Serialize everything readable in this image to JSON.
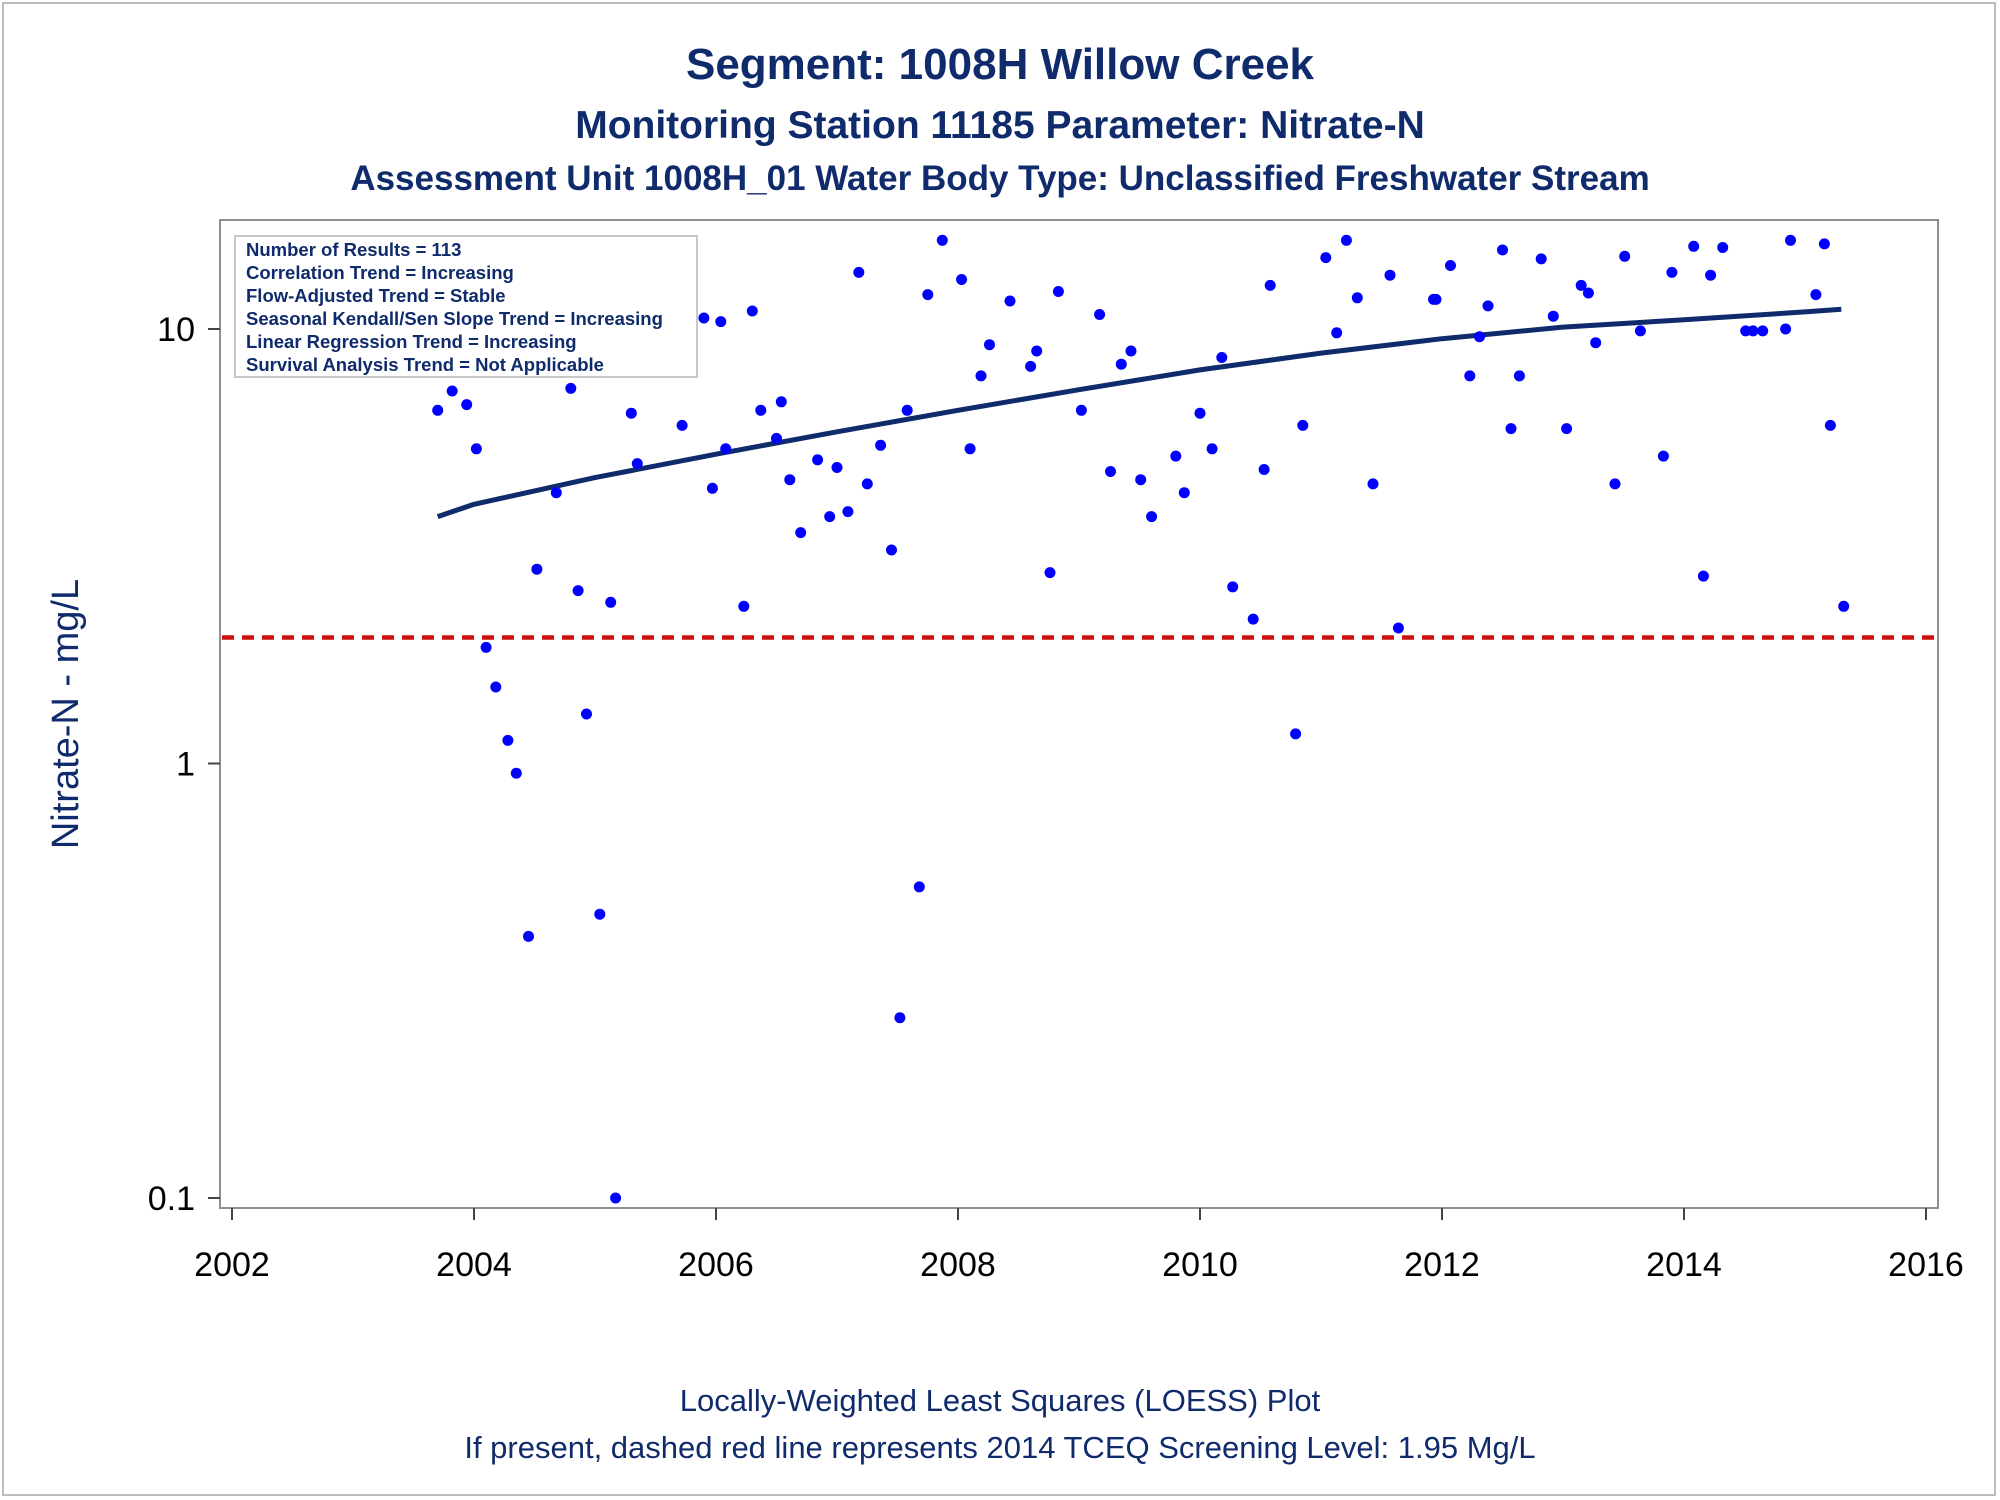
{
  "chart_data": {
    "type": "scatter",
    "title": "Segment: 1008H  Willow Creek",
    "subtitle": "Monitoring Station 11185 Parameter: Nitrate-N",
    "subtitle2": "Assessment Unit 1008H_01   Water Body Type: Unclassified Freshwater Stream",
    "ylabel": "Nitrate-N - mg/L",
    "xlim": [
      2002,
      2016
    ],
    "ylim": [
      0.1,
      17
    ],
    "yscale": "log",
    "x_ticks": [
      "2002",
      "2004",
      "2006",
      "2008",
      "2010",
      "2012",
      "2014",
      "2016"
    ],
    "y_ticks": [
      "0.1",
      "1",
      "10"
    ],
    "legend": [
      "Number of Results = 113",
      "Correlation Trend = Increasing",
      "Flow-Adjusted Trend = Stable",
      "Seasonal Kendall/Sen Slope Trend = Increasing",
      "Linear Regression Trend = Increasing",
      "Survival Analysis Trend = Not Applicable"
    ],
    "legend_placement": "top-left",
    "footnotes": [
      "Locally-Weighted Least Squares (LOESS) Plot",
      "If present, dashed red line represents 2014 TCEQ Screening Level: 1.95 Mg/L"
    ],
    "screening_level": 1.95,
    "series": [
      {
        "style": "points",
        "color": "#0000ff",
        "x": [
          2003.7,
          2003.82,
          2003.88,
          2003.94,
          2004.02,
          2004.1,
          2004.18,
          2004.28,
          2004.35,
          2004.45,
          2004.52,
          2004.68,
          2004.8,
          2004.86,
          2004.93,
          2005.04,
          2005.13,
          2005.17,
          2005.3,
          2005.35,
          2005.72,
          2005.78,
          2005.9,
          2005.97,
          2006.04,
          2006.08,
          2006.23,
          2006.3,
          2006.37,
          2006.5,
          2006.54,
          2006.61,
          2006.7,
          2006.84,
          2006.94,
          2007.0,
          2007.09,
          2007.18,
          2007.25,
          2007.36,
          2007.45,
          2007.52,
          2007.58,
          2007.68,
          2007.75,
          2007.87,
          2008.03,
          2008.1,
          2008.19,
          2008.26,
          2008.43,
          2008.6,
          2008.65,
          2008.76,
          2008.83,
          2009.02,
          2009.17,
          2009.26,
          2009.35,
          2009.43,
          2009.51,
          2009.6,
          2009.8,
          2009.87,
          2010.0,
          2010.1,
          2010.18,
          2010.27,
          2010.44,
          2010.53,
          2010.58,
          2010.79,
          2010.85,
          2011.04,
          2011.13,
          2011.21,
          2011.3,
          2011.43,
          2011.57,
          2011.64,
          2011.93,
          2011.95,
          2012.07,
          2012.23,
          2012.31,
          2012.38,
          2012.5,
          2012.57,
          2012.64,
          2012.82,
          2012.92,
          2013.03,
          2013.15,
          2013.21,
          2013.27,
          2013.43,
          2013.51,
          2013.64,
          2013.83,
          2013.9,
          2014.08,
          2014.16,
          2014.22,
          2014.32,
          2014.51,
          2014.57,
          2014.65,
          2014.84,
          2014.88,
          2015.09,
          2015.16,
          2015.21,
          2015.32
        ],
        "y": [
          6.5,
          7.2,
          8.0,
          6.7,
          5.3,
          1.85,
          1.5,
          1.13,
          0.95,
          0.4,
          2.8,
          4.2,
          7.3,
          2.5,
          1.3,
          0.45,
          2.35,
          0.1,
          6.4,
          4.9,
          6.0,
          10.3,
          10.6,
          4.3,
          10.4,
          5.3,
          2.3,
          11.0,
          6.5,
          5.6,
          6.8,
          4.5,
          3.4,
          5.0,
          3.7,
          4.8,
          3.8,
          13.5,
          4.4,
          5.4,
          3.1,
          0.26,
          6.5,
          0.52,
          12.0,
          16.0,
          13.0,
          5.3,
          7.8,
          9.2,
          11.6,
          8.2,
          8.9,
          2.75,
          12.2,
          6.5,
          10.8,
          4.7,
          8.3,
          8.9,
          4.5,
          3.7,
          5.1,
          4.2,
          6.4,
          5.3,
          8.6,
          2.55,
          2.15,
          4.75,
          12.6,
          1.17,
          6.0,
          14.6,
          9.8,
          16.0,
          11.8,
          4.4,
          13.3,
          2.05,
          11.7,
          11.7,
          14.0,
          7.8,
          9.6,
          11.3,
          15.2,
          5.9,
          7.8,
          14.5,
          10.7,
          5.9,
          12.6,
          12.1,
          9.3,
          4.4,
          14.7,
          9.9,
          5.1,
          13.5,
          15.5,
          2.7,
          13.3,
          15.4,
          9.9,
          9.9,
          9.9,
          10.0,
          16.0,
          12.0,
          15.7,
          6.0,
          2.3
        ]
      },
      {
        "style": "line",
        "name": "LOESS",
        "color": "#0f2b6b",
        "x": [
          2003.7,
          2004.0,
          2005.0,
          2006.0,
          2007.0,
          2008.0,
          2009.0,
          2010.0,
          2011.0,
          2012.0,
          2013.0,
          2014.0,
          2015.0,
          2015.3
        ],
        "y": [
          3.7,
          3.95,
          4.55,
          5.15,
          5.8,
          6.5,
          7.25,
          8.05,
          8.8,
          9.5,
          10.1,
          10.5,
          10.95,
          11.1
        ]
      }
    ]
  }
}
